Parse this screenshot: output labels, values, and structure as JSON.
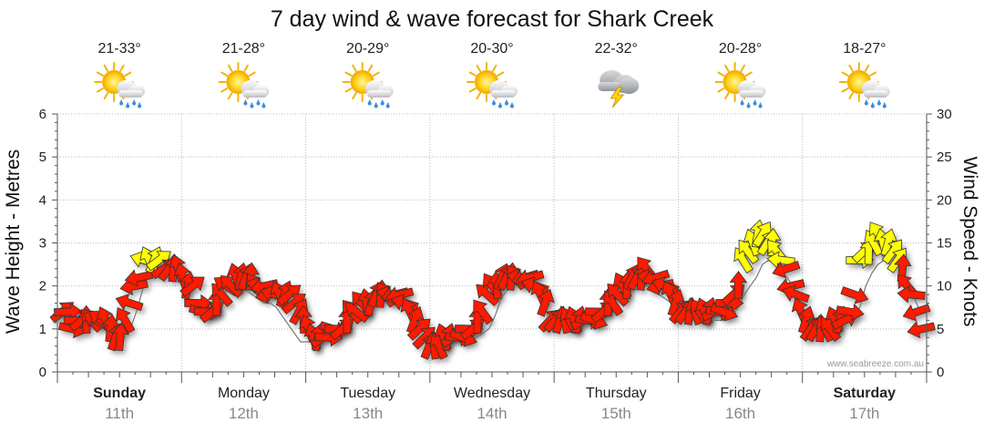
{
  "chart_data": {
    "type": "wind-wave-forecast",
    "title": "7 day wind & wave forecast for Shark Creek",
    "left_axis": {
      "label": "Wave Height - Metres",
      "min": 0,
      "max": 6,
      "ticks": [
        "0",
        "1",
        "2",
        "3",
        "4",
        "5",
        "6"
      ]
    },
    "right_axis": {
      "label": "Wind Speed - Knots",
      "min": 0,
      "max": 30,
      "ticks": [
        "0",
        "5",
        "10",
        "15",
        "20",
        "25",
        "30"
      ]
    },
    "grid": true,
    "watermark": "www.seabreeze.com.au",
    "days": [
      {
        "name": "Sunday",
        "date": "11th",
        "temp": "21-33°",
        "icon": "sun-cloud-rain-icon",
        "bold": true
      },
      {
        "name": "Monday",
        "date": "12th",
        "temp": "21-28°",
        "icon": "sun-cloud-rain-icon",
        "bold": false
      },
      {
        "name": "Tuesday",
        "date": "13th",
        "temp": "20-29°",
        "icon": "sun-cloud-rain-icon",
        "bold": false
      },
      {
        "name": "Wednesday",
        "date": "14th",
        "temp": "20-30°",
        "icon": "sun-cloud-rain-icon",
        "bold": false
      },
      {
        "name": "Thursday",
        "date": "15th",
        "temp": "22-32°",
        "icon": "storm-cloud-icon",
        "bold": false
      },
      {
        "name": "Friday",
        "date": "16th",
        "temp": "20-28°",
        "icon": "sun-cloud-rain-icon",
        "bold": false
      },
      {
        "name": "Saturday",
        "date": "17th",
        "temp": "18-27°",
        "icon": "sun-cloud-rain-icon",
        "bold": true
      }
    ],
    "legend_colors": {
      "red": "#ff1a00",
      "yellow": "#ffff00"
    },
    "wind_knots": [
      7,
      7,
      5,
      6,
      6,
      6,
      6,
      6,
      6,
      6,
      5,
      4,
      4,
      6,
      8,
      10,
      11,
      13,
      13,
      13,
      13,
      12,
      12,
      12,
      12,
      11,
      10,
      10,
      8,
      7,
      7,
      7,
      8,
      9,
      10,
      10,
      11,
      11,
      11,
      11,
      10,
      10,
      10,
      9,
      9,
      9,
      9,
      9,
      8,
      7,
      6,
      5,
      4,
      4,
      4,
      4,
      5,
      5,
      5,
      6,
      7,
      7,
      8,
      8,
      8,
      9,
      9,
      9,
      9,
      9,
      9,
      8,
      7,
      6,
      5,
      4,
      3,
      3,
      3,
      4,
      4,
      4,
      4,
      4,
      5,
      5,
      6,
      7,
      9,
      10,
      10,
      11,
      11,
      11,
      11,
      11,
      11,
      11,
      10,
      9,
      8,
      6,
      6,
      6,
      6,
      6,
      6,
      6,
      6,
      6,
      6,
      7,
      7,
      8,
      8,
      9,
      10,
      10,
      11,
      11,
      11,
      12,
      11,
      11,
      10,
      10,
      9,
      8,
      7,
      7,
      7,
      7,
      7,
      7,
      7,
      7,
      7,
      7,
      8,
      9,
      10,
      13,
      14,
      15,
      16,
      16,
      15,
      15,
      14,
      13,
      12,
      10,
      9,
      7,
      6,
      5,
      5,
      5,
      5,
      5,
      6,
      6,
      6,
      7,
      9,
      13,
      14,
      14,
      15,
      16,
      15,
      15,
      14,
      13,
      12,
      10,
      9,
      7,
      5
    ],
    "wave_m": [
      1.2,
      1.2,
      1.1,
      1.1,
      1.1,
      1.1,
      1.1,
      1.1,
      1.0,
      1.0,
      1.0,
      1.0,
      1.4,
      1.9,
      2.4,
      2.5,
      2.5,
      2.2,
      2.1,
      2.1,
      1.9,
      1.6,
      1.5,
      1.6,
      1.6,
      1.7,
      1.8,
      1.9,
      2.0,
      2.0,
      1.9,
      1.8,
      1.7,
      1.6,
      1.6,
      1.5,
      1.3,
      1.1,
      0.9,
      0.7,
      0.7,
      0.7,
      0.7,
      0.7,
      0.8,
      1.0,
      1.2,
      1.5,
      1.6,
      1.7,
      1.8,
      1.8,
      1.8,
      1.8,
      1.8,
      1.7,
      1.5,
      1.3,
      1.1,
      1.0,
      0.8,
      0.7,
      0.7,
      0.7,
      0.8,
      0.8,
      0.8,
      0.8,
      0.8,
      0.9,
      1.0,
      1.3,
      1.7,
      1.9,
      2.0,
      2.0,
      2.0,
      1.9,
      1.8,
      1.7,
      1.1,
      1.1,
      1.1,
      1.1,
      1.1,
      1.1,
      1.1,
      1.1,
      1.1,
      1.2,
      1.5,
      1.7,
      1.8,
      1.9,
      1.9,
      2.0,
      2.0,
      1.9,
      1.8,
      1.7,
      1.6,
      1.5,
      1.3,
      1.2,
      1.2,
      1.2,
      1.2,
      1.2,
      1.2,
      1.2,
      1.3,
      1.5,
      1.8,
      2.0,
      2.2,
      2.5,
      2.6,
      2.5,
      2.4,
      2.2,
      2.0,
      1.6,
      1.3,
      1.1,
      1.1,
      1.1,
      1.1,
      1.1,
      1.1,
      1.2,
      1.3,
      1.5,
      2.0,
      2.3,
      2.5,
      2.6,
      2.5,
      2.5,
      2.3,
      2.0,
      1.7,
      1.4
    ]
  }
}
